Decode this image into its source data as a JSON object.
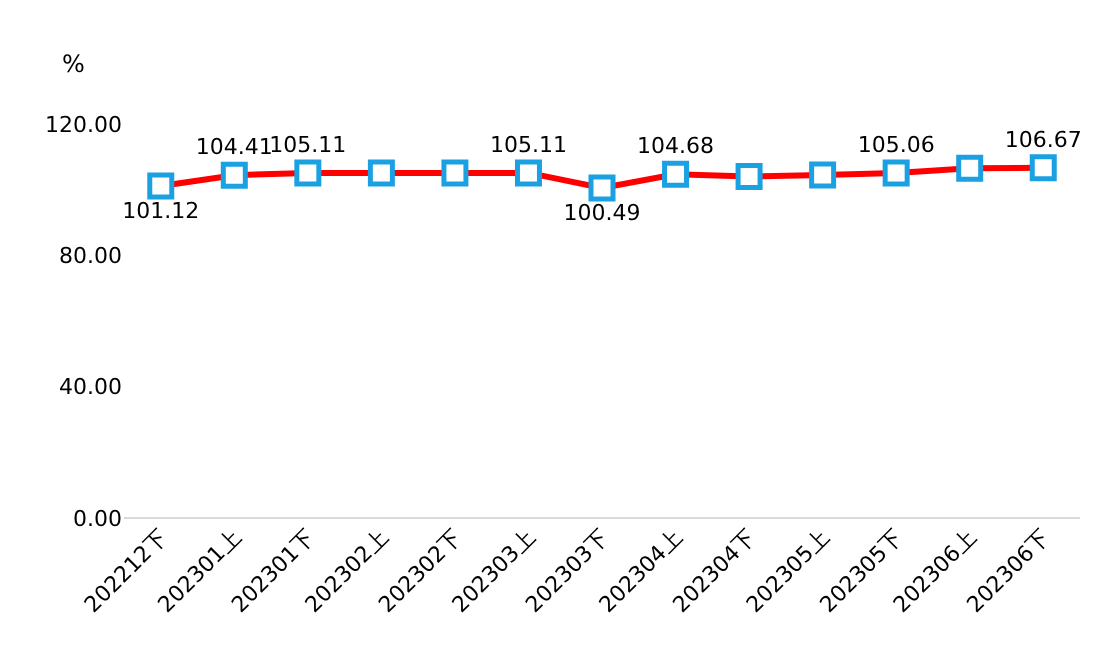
{
  "chart_data": {
    "type": "line",
    "ylabel": "%",
    "categories": [
      "202212下",
      "202301上",
      "202301下",
      "202302上",
      "202302下",
      "202303上",
      "202303下",
      "202304上",
      "202304下",
      "202305上",
      "202305下",
      "202306上",
      "202306下"
    ],
    "series": [
      {
        "color": "#ff0000",
        "values": [
          101.12,
          104.41,
          105.11,
          105.1,
          105.1,
          105.11,
          100.49,
          104.68,
          104.0,
          104.5,
          105.06,
          106.5,
          106.67
        ],
        "value_labels": [
          "101.12",
          "104.41",
          "105.11",
          null,
          null,
          "105.11",
          "100.49",
          "104.68",
          null,
          null,
          "105.06",
          null,
          "106.67"
        ]
      }
    ],
    "ylim": [
      0,
      120
    ],
    "yticks": [
      {
        "value": 0,
        "label": "0.00"
      },
      {
        "value": 40,
        "label": "40.00"
      },
      {
        "value": 80,
        "label": "80.00"
      },
      {
        "value": 120,
        "label": "120.00"
      }
    ],
    "marker": "square",
    "line_style": "solid"
  }
}
